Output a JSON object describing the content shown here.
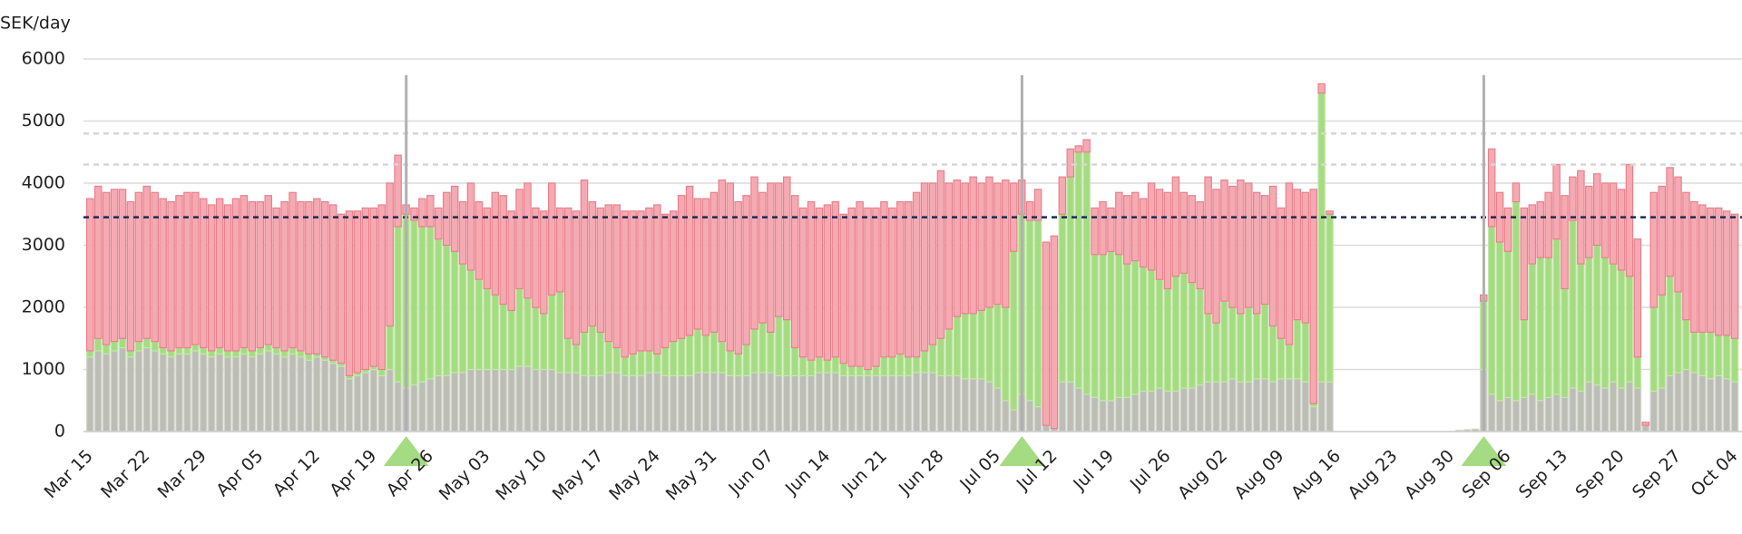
{
  "chart_data": {
    "type": "bar",
    "stacked": true,
    "y_label": "SEK/day",
    "categories": [
      "Mar 15",
      null,
      null,
      null,
      null,
      null,
      null,
      "Mar 22",
      null,
      null,
      null,
      null,
      null,
      null,
      "Mar 29",
      null,
      null,
      null,
      null,
      null,
      null,
      "Apr 05",
      null,
      null,
      null,
      null,
      null,
      null,
      "Apr 12",
      null,
      null,
      null,
      null,
      null,
      null,
      "Apr 19",
      null,
      null,
      null,
      null,
      null,
      null,
      "Apr 26",
      null,
      null,
      null,
      null,
      null,
      null,
      "May 03",
      null,
      null,
      null,
      null,
      null,
      null,
      "May 10",
      null,
      null,
      null,
      null,
      null,
      null,
      "May 17",
      null,
      null,
      null,
      null,
      null,
      null,
      "May 24",
      null,
      null,
      null,
      null,
      null,
      null,
      "May 31",
      null,
      null,
      null,
      null,
      null,
      null,
      "Jun 07",
      null,
      null,
      null,
      null,
      null,
      null,
      "Jun 14",
      null,
      null,
      null,
      null,
      null,
      null,
      "Jun 21",
      null,
      null,
      null,
      null,
      null,
      null,
      "Jun 28",
      null,
      null,
      null,
      null,
      null,
      null,
      "Jul 05",
      null,
      null,
      null,
      null,
      null,
      null,
      "Jul 12",
      null,
      null,
      null,
      null,
      null,
      null,
      "Jul 19",
      null,
      null,
      null,
      null,
      null,
      null,
      "Jul 26",
      null,
      null,
      null,
      null,
      null,
      null,
      "Aug 02",
      null,
      null,
      null,
      null,
      null,
      null,
      "Aug 09",
      null,
      null,
      null,
      null,
      null,
      null,
      "Aug 16",
      null,
      null,
      null,
      null,
      null,
      null,
      "Aug 23",
      null,
      null,
      null,
      null,
      null,
      null,
      "Aug 30",
      null,
      null,
      null,
      null,
      null,
      null,
      "Sep 06",
      null,
      null,
      null,
      null,
      null,
      null,
      "Sep 13",
      null,
      null,
      null,
      null,
      null,
      null,
      "Sep 20",
      null,
      null,
      null,
      null,
      null,
      null,
      "Sep 27",
      null,
      null,
      null,
      null,
      null,
      null,
      "Oct 04"
    ],
    "series": [
      {
        "color": "#bcbeb6",
        "stroke": "#d4d6cf",
        "values": [
          1200,
          1300,
          1250,
          1300,
          1350,
          1200,
          1300,
          1350,
          1300,
          1250,
          1200,
          1250,
          1250,
          1300,
          1250,
          1200,
          1250,
          1200,
          1200,
          1250,
          1200,
          1250,
          1300,
          1250,
          1200,
          1250,
          1200,
          1150,
          1200,
          1150,
          1100,
          1050,
          850,
          900,
          950,
          1000,
          900,
          1000,
          800,
          700,
          750,
          800,
          850,
          900,
          900,
          950,
          950,
          1000,
          1000,
          1000,
          1000,
          1000,
          1000,
          1050,
          1050,
          1000,
          1000,
          1000,
          950,
          950,
          950,
          900,
          900,
          900,
          950,
          950,
          900,
          900,
          900,
          950,
          950,
          900,
          900,
          900,
          900,
          950,
          950,
          950,
          950,
          900,
          900,
          900,
          950,
          950,
          950,
          900,
          900,
          900,
          900,
          900,
          950,
          950,
          950,
          900,
          900,
          900,
          900,
          900,
          900,
          900,
          900,
          900,
          950,
          950,
          950,
          900,
          900,
          900,
          850,
          850,
          850,
          800,
          700,
          500,
          350,
          600,
          500,
          400,
          100,
          50,
          800,
          800,
          700,
          600,
          550,
          500,
          500,
          550,
          550,
          600,
          650,
          650,
          700,
          650,
          650,
          700,
          700,
          750,
          800,
          800,
          800,
          850,
          800,
          800,
          850,
          850,
          800,
          850,
          850,
          850,
          800,
          400,
          800,
          800,
          null,
          null,
          null,
          null,
          null,
          null,
          null,
          null,
          null,
          null,
          null,
          null,
          null,
          null,
          null,
          20,
          30,
          40,
          1000,
          600,
          500,
          550,
          500,
          550,
          600,
          500,
          550,
          600,
          550,
          700,
          650,
          800,
          750,
          700,
          800,
          700,
          800,
          700,
          100,
          650,
          700,
          900,
          950,
          1000,
          950,
          900,
          850,
          900,
          850,
          800
        ]
      },
      {
        "color": "#a5db82",
        "stroke": "#c3e8a8",
        "values": [
          100,
          200,
          150,
          150,
          150,
          100,
          150,
          150,
          150,
          100,
          100,
          100,
          100,
          100,
          100,
          100,
          100,
          100,
          100,
          100,
          100,
          100,
          100,
          100,
          100,
          100,
          100,
          100,
          50,
          50,
          50,
          50,
          50,
          50,
          50,
          50,
          100,
          700,
          2500,
          2800,
          2650,
          2500,
          2450,
          2200,
          2100,
          1950,
          1750,
          1600,
          1450,
          1300,
          1200,
          1050,
          950,
          1250,
          1100,
          1000,
          900,
          1200,
          1300,
          550,
          450,
          700,
          800,
          700,
          500,
          400,
          300,
          350,
          400,
          350,
          300,
          450,
          550,
          600,
          650,
          700,
          600,
          650,
          500,
          400,
          350,
          500,
          700,
          800,
          650,
          950,
          900,
          450,
          300,
          250,
          250,
          200,
          250,
          200,
          150,
          150,
          100,
          150,
          300,
          300,
          350,
          300,
          250,
          350,
          450,
          600,
          750,
          950,
          1050,
          1050,
          1100,
          1200,
          1350,
          1500,
          2550,
          2900,
          2900,
          3000,
          0,
          0,
          2700,
          3300,
          3800,
          3900,
          2300,
          2350,
          2400,
          2300,
          2150,
          2150,
          2000,
          1950,
          1750,
          1650,
          1850,
          1850,
          1700,
          1550,
          1100,
          950,
          1300,
          1150,
          1100,
          1200,
          1050,
          1200,
          900,
          650,
          550,
          950,
          950,
          50,
          4650,
          2700,
          null,
          null,
          null,
          null,
          null,
          null,
          null,
          null,
          null,
          null,
          null,
          null,
          null,
          null,
          null,
          0,
          0,
          0,
          1100,
          2700,
          2550,
          2350,
          3200,
          1250,
          2100,
          2300,
          2250,
          2500,
          1750,
          2700,
          2050,
          2000,
          2250,
          2100,
          1900,
          1900,
          1700,
          500,
          0,
          1350,
          1500,
          1600,
          1300,
          800,
          650,
          700,
          750,
          650,
          700,
          700
        ]
      },
      {
        "color": "#f5aab2",
        "stroke": "#e8808d",
        "values": [
          2450,
          2450,
          2450,
          2450,
          2400,
          2400,
          2400,
          2450,
          2400,
          2400,
          2400,
          2450,
          2500,
          2450,
          2400,
          2350,
          2400,
          2350,
          2450,
          2450,
          2400,
          2350,
          2400,
          2250,
          2400,
          2500,
          2400,
          2450,
          2500,
          2500,
          2500,
          2400,
          2650,
          2600,
          2600,
          2550,
          2650,
          2300,
          1150,
          150,
          200,
          450,
          500,
          500,
          850,
          1050,
          1000,
          1400,
          1250,
          1300,
          1650,
          1750,
          1600,
          1600,
          1850,
          1600,
          1650,
          1800,
          1350,
          2100,
          2150,
          2450,
          2000,
          2000,
          2200,
          2300,
          2350,
          2300,
          2250,
          2300,
          2400,
          2150,
          2100,
          2300,
          2400,
          2100,
          2200,
          2250,
          2600,
          2700,
          2450,
          2400,
          2450,
          2100,
          2400,
          2150,
          2300,
          2450,
          2400,
          2550,
          2400,
          2500,
          2500,
          2400,
          2550,
          2650,
          2600,
          2550,
          2500,
          2400,
          2450,
          2500,
          2650,
          2700,
          2600,
          2700,
          2350,
          2200,
          2100,
          2200,
          2050,
          2100,
          1950,
          2050,
          1100,
          550,
          300,
          500,
          2950,
          3100,
          600,
          450,
          100,
          200,
          750,
          850,
          700,
          1000,
          1100,
          1100,
          1100,
          1400,
          1450,
          1550,
          1600,
          1300,
          1400,
          1400,
          2200,
          2150,
          1950,
          1950,
          2150,
          2000,
          1950,
          1750,
          2250,
          2100,
          2600,
          2100,
          2100,
          3450,
          150,
          50,
          null,
          null,
          null,
          null,
          null,
          null,
          null,
          null,
          null,
          null,
          null,
          null,
          null,
          null,
          null,
          0,
          0,
          0,
          100,
          1250,
          800,
          700,
          300,
          1800,
          950,
          900,
          1050,
          1200,
          1500,
          700,
          1500,
          1150,
          1150,
          1200,
          1300,
          1300,
          1800,
          1900,
          50,
          1850,
          1750,
          1750,
          1850,
          2050,
          2100,
          2050,
          2000,
          2050,
          2000,
          2000
        ]
      }
    ],
    "ylim": [
      0,
      6000
    ],
    "yticks": [
      0,
      1000,
      2000,
      3000,
      4000,
      5000,
      6000
    ],
    "grid": true,
    "reference_lines": [
      {
        "value": 3450,
        "color": "#1e2a55"
      },
      {
        "value": 4300,
        "color": "#d6d6d6"
      },
      {
        "value": 4800,
        "color": "#d6d6d6"
      }
    ],
    "events": [
      39,
      115,
      172
    ],
    "event_color": "#a5db82"
  }
}
